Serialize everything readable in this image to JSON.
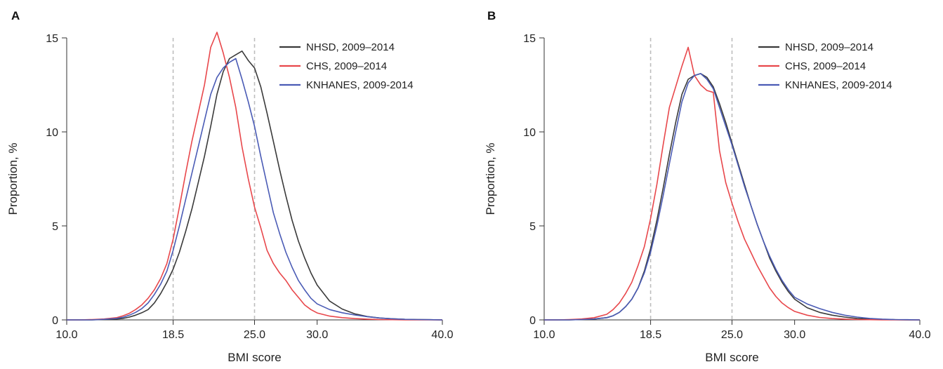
{
  "chart_data": [
    {
      "panel_label": "A",
      "type": "line",
      "xlabel": "BMI score",
      "ylabel": "Proportion, %",
      "xlim": [
        10,
        40
      ],
      "ylim": [
        0,
        15
      ],
      "x_ticks": [
        "10.0",
        "18.5",
        "25.0",
        "30.0",
        "40.0"
      ],
      "y_ticks": [
        "0",
        "5",
        "10",
        "15"
      ],
      "reference_lines_x": [
        18.5,
        25.0
      ],
      "legend_position": "top-right",
      "series": [
        {
          "name": "NHSD, 2009–2014",
          "color": "#3a3a3a",
          "x": [
            10,
            11,
            12,
            13,
            14,
            14.5,
            15,
            15.5,
            16,
            16.5,
            17,
            17.5,
            18,
            18.5,
            19,
            19.5,
            20,
            20.5,
            21,
            21.5,
            22,
            22.5,
            23,
            23.5,
            24,
            24.5,
            25,
            25.5,
            26,
            26.5,
            27,
            27.5,
            28,
            28.5,
            29,
            29.5,
            30,
            31,
            32,
            33,
            34,
            35,
            36,
            37,
            38,
            39,
            40
          ],
          "y": [
            0,
            0,
            0,
            0.02,
            0.05,
            0.08,
            0.15,
            0.25,
            0.38,
            0.55,
            0.9,
            1.4,
            2.0,
            2.7,
            3.6,
            4.7,
            5.9,
            7.3,
            8.7,
            10.3,
            12.0,
            13.2,
            13.9,
            14.1,
            14.3,
            13.8,
            13.4,
            12.4,
            11.0,
            9.5,
            8.0,
            6.6,
            5.3,
            4.2,
            3.3,
            2.5,
            1.85,
            1.0,
            0.58,
            0.32,
            0.18,
            0.1,
            0.06,
            0.03,
            0.02,
            0.01,
            0
          ]
        },
        {
          "name": "CHS, 2009–2014",
          "color": "#e8474b",
          "x": [
            10,
            11,
            12,
            13,
            14,
            14.5,
            15,
            15.5,
            16,
            16.5,
            17,
            17.5,
            18,
            18.5,
            19,
            19.5,
            20,
            20.5,
            21,
            21.5,
            22,
            22.5,
            23,
            23.5,
            24,
            24.5,
            25,
            25.5,
            26,
            26.5,
            27,
            27.5,
            28,
            28.5,
            29,
            29.5,
            30,
            31,
            32,
            33,
            34,
            35,
            36,
            37,
            38,
            39,
            40
          ],
          "y": [
            0,
            0,
            0.02,
            0.05,
            0.12,
            0.22,
            0.35,
            0.55,
            0.8,
            1.15,
            1.6,
            2.2,
            3.0,
            4.3,
            6.0,
            7.8,
            9.5,
            11.0,
            12.5,
            14.5,
            15.3,
            14.2,
            12.9,
            11.3,
            9.2,
            7.5,
            6.0,
            4.9,
            3.7,
            3.0,
            2.5,
            2.1,
            1.6,
            1.2,
            0.8,
            0.55,
            0.37,
            0.2,
            0.12,
            0.07,
            0.04,
            0.02,
            0.01,
            0,
            0,
            0,
            0
          ]
        },
        {
          "name": "KNHANES, 2009-2014",
          "color": "#4a5bb5",
          "x": [
            10,
            11,
            12,
            13,
            14,
            14.5,
            15,
            15.5,
            16,
            16.5,
            17,
            17.5,
            18,
            18.5,
            19,
            19.5,
            20,
            20.5,
            21,
            21.5,
            22,
            22.5,
            23,
            23.5,
            24,
            24.5,
            25,
            25.5,
            26,
            26.5,
            27,
            27.5,
            28,
            28.5,
            29,
            29.5,
            30,
            31,
            32,
            33,
            34,
            35,
            36,
            37,
            38,
            39,
            40
          ],
          "y": [
            0,
            0,
            0,
            0.03,
            0.08,
            0.14,
            0.25,
            0.4,
            0.6,
            0.9,
            1.35,
            1.9,
            2.6,
            3.7,
            5.0,
            6.4,
            7.8,
            9.2,
            10.6,
            12.0,
            12.9,
            13.4,
            13.7,
            13.9,
            12.8,
            11.6,
            10.3,
            8.7,
            7.2,
            5.7,
            4.6,
            3.6,
            2.8,
            2.1,
            1.6,
            1.15,
            0.85,
            0.55,
            0.38,
            0.26,
            0.17,
            0.1,
            0.06,
            0.03,
            0.02,
            0.01,
            0
          ]
        }
      ]
    },
    {
      "panel_label": "B",
      "type": "line",
      "xlabel": "BMI score",
      "ylabel": "Proportion, %",
      "xlim": [
        10,
        40
      ],
      "ylim": [
        0,
        15
      ],
      "x_ticks": [
        "10.0",
        "18.5",
        "25.0",
        "30.0",
        "40.0"
      ],
      "y_ticks": [
        "0",
        "5",
        "10",
        "15"
      ],
      "reference_lines_x": [
        18.5,
        25.0
      ],
      "legend_position": "top-right",
      "series": [
        {
          "name": "NHSD, 2009–2014",
          "color": "#3a3a3a",
          "x": [
            10,
            11,
            12,
            13,
            14,
            15,
            15.5,
            16,
            16.5,
            17,
            17.5,
            18,
            18.5,
            19,
            19.5,
            20,
            20.5,
            21,
            21.5,
            22,
            22.5,
            23,
            23.5,
            24,
            24.5,
            25,
            25.5,
            26,
            26.5,
            27,
            27.5,
            28,
            28.5,
            29,
            29.5,
            30,
            31,
            32,
            33,
            34,
            35,
            36,
            37,
            38,
            39,
            40
          ],
          "y": [
            0,
            0,
            0,
            0.02,
            0.05,
            0.12,
            0.22,
            0.4,
            0.7,
            1.1,
            1.7,
            2.6,
            3.8,
            5.3,
            7.0,
            8.8,
            10.5,
            12.0,
            12.8,
            13.0,
            13.1,
            12.9,
            12.4,
            11.5,
            10.5,
            9.4,
            8.3,
            7.2,
            6.1,
            5.1,
            4.2,
            3.3,
            2.6,
            2.0,
            1.5,
            1.1,
            0.65,
            0.4,
            0.25,
            0.15,
            0.08,
            0.04,
            0.02,
            0.01,
            0,
            0
          ]
        },
        {
          "name": "CHS, 2009–2014",
          "color": "#e8474b",
          "x": [
            10,
            11,
            12,
            13,
            14,
            15,
            15.5,
            16,
            16.5,
            17,
            17.5,
            18,
            18.5,
            19,
            19.5,
            20,
            20.5,
            21,
            21.5,
            22,
            22.5,
            23,
            23.5,
            24,
            24.5,
            25,
            25.5,
            26,
            26.5,
            27,
            27.5,
            28,
            28.5,
            29,
            29.5,
            30,
            31,
            32,
            33,
            34,
            35,
            36,
            37,
            38,
            39,
            40
          ],
          "y": [
            0,
            0,
            0.02,
            0.05,
            0.12,
            0.3,
            0.55,
            0.9,
            1.4,
            2.0,
            2.9,
            3.9,
            5.4,
            7.2,
            9.3,
            11.3,
            12.4,
            13.5,
            14.5,
            13.0,
            12.5,
            12.2,
            12.1,
            9.0,
            7.3,
            6.2,
            5.2,
            4.3,
            3.6,
            2.9,
            2.3,
            1.7,
            1.25,
            0.9,
            0.65,
            0.45,
            0.25,
            0.13,
            0.07,
            0.04,
            0.02,
            0.01,
            0,
            0,
            0,
            0
          ]
        },
        {
          "name": "KNHANES, 2009-2014",
          "color": "#4a5bb5",
          "x": [
            10,
            11,
            12,
            13,
            14,
            15,
            15.5,
            16,
            16.5,
            17,
            17.5,
            18,
            18.5,
            19,
            19.5,
            20,
            20.5,
            21,
            21.5,
            22,
            22.5,
            23,
            23.5,
            24,
            24.5,
            25,
            25.5,
            26,
            26.5,
            27,
            27.5,
            28,
            28.5,
            29,
            29.5,
            30,
            31,
            32,
            33,
            34,
            35,
            36,
            37,
            38,
            39,
            40
          ],
          "y": [
            0,
            0,
            0,
            0.02,
            0.05,
            0.12,
            0.22,
            0.4,
            0.7,
            1.1,
            1.7,
            2.5,
            3.6,
            5.0,
            6.6,
            8.3,
            10.0,
            11.6,
            12.6,
            13.0,
            13.1,
            12.8,
            12.3,
            11.3,
            10.3,
            9.3,
            8.2,
            7.1,
            6.1,
            5.1,
            4.2,
            3.4,
            2.7,
            2.1,
            1.6,
            1.2,
            0.85,
            0.6,
            0.4,
            0.25,
            0.15,
            0.08,
            0.04,
            0.02,
            0.01,
            0
          ]
        }
      ]
    }
  ]
}
